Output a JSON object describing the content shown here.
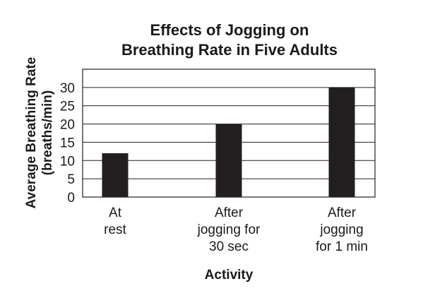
{
  "chart_data": {
    "type": "bar",
    "title_lines": [
      "Effects of Jogging on",
      "Breathing Rate in Five Adults"
    ],
    "ylabel_lines": [
      "Average Breathing Rate",
      "(breaths/min)"
    ],
    "xlabel": "Activity",
    "categories": [
      [
        "At",
        "rest"
      ],
      [
        "After",
        "jogging for",
        "30 sec"
      ],
      [
        "After",
        "jogging",
        "for 1 min"
      ]
    ],
    "values": [
      12,
      20,
      30
    ],
    "ylim": [
      0,
      35
    ],
    "yticks": [
      0,
      5,
      10,
      15,
      20,
      25,
      30
    ],
    "grid": true,
    "legend": "none",
    "bar_color": "#231f20",
    "grid_color": "#231f20"
  }
}
